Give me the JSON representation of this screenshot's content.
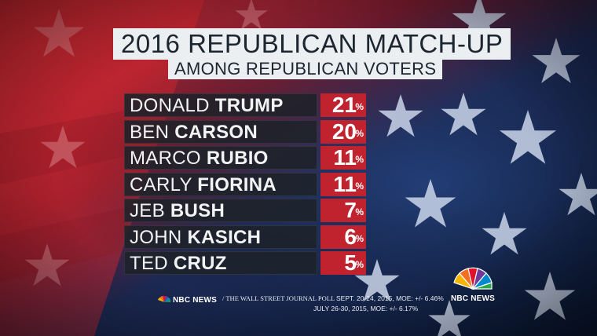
{
  "header": {
    "title": "2016 REPUBLICAN MATCH-UP",
    "subtitle": "AMONG REPUBLICAN VOTERS"
  },
  "chart_data": {
    "type": "bar",
    "title": "2016 REPUBLICAN MATCH-UP",
    "subtitle": "AMONG REPUBLICAN VOTERS",
    "unit": "%",
    "categories": [
      "DONALD TRUMP",
      "BEN CARSON",
      "MARCO RUBIO",
      "CARLY FIORINA",
      "JEB BUSH",
      "JOHN KASICH",
      "TED CRUZ"
    ],
    "rows": [
      {
        "first": "DONALD",
        "last": "TRUMP",
        "value": 21
      },
      {
        "first": "BEN",
        "last": "CARSON",
        "value": 20
      },
      {
        "first": "MARCO",
        "last": "RUBIO",
        "value": 11
      },
      {
        "first": "CARLY",
        "last": "FIORINA",
        "value": 11
      },
      {
        "first": "JEB",
        "last": "BUSH",
        "value": 7
      },
      {
        "first": "JOHN",
        "last": "KASICH",
        "value": 6
      },
      {
        "first": "TED",
        "last": "CRUZ",
        "value": 5
      }
    ],
    "values": [
      21,
      20,
      11,
      11,
      7,
      6,
      5
    ]
  },
  "footer": {
    "network_label": "NBC NEWS",
    "separator": "/",
    "poll_label": "THE WALL STREET JOURNAL POLL",
    "line1_dates": "SEPT. 20-24, 2015, MOE: +/- 6.46%",
    "line2": "JULY 26-30, 2015, MOE: +/- 6.17%"
  },
  "watermark": {
    "label": "NBC NEWS"
  },
  "colors": {
    "red_bg": "#b3202d",
    "navy_bg": "#102246",
    "value_cell": "#c0222e",
    "name_cell": "#1e2229",
    "title_box": "#eceff1"
  },
  "icons": {
    "logo": "nbc-peacock-icon",
    "stars": "star-icon"
  }
}
